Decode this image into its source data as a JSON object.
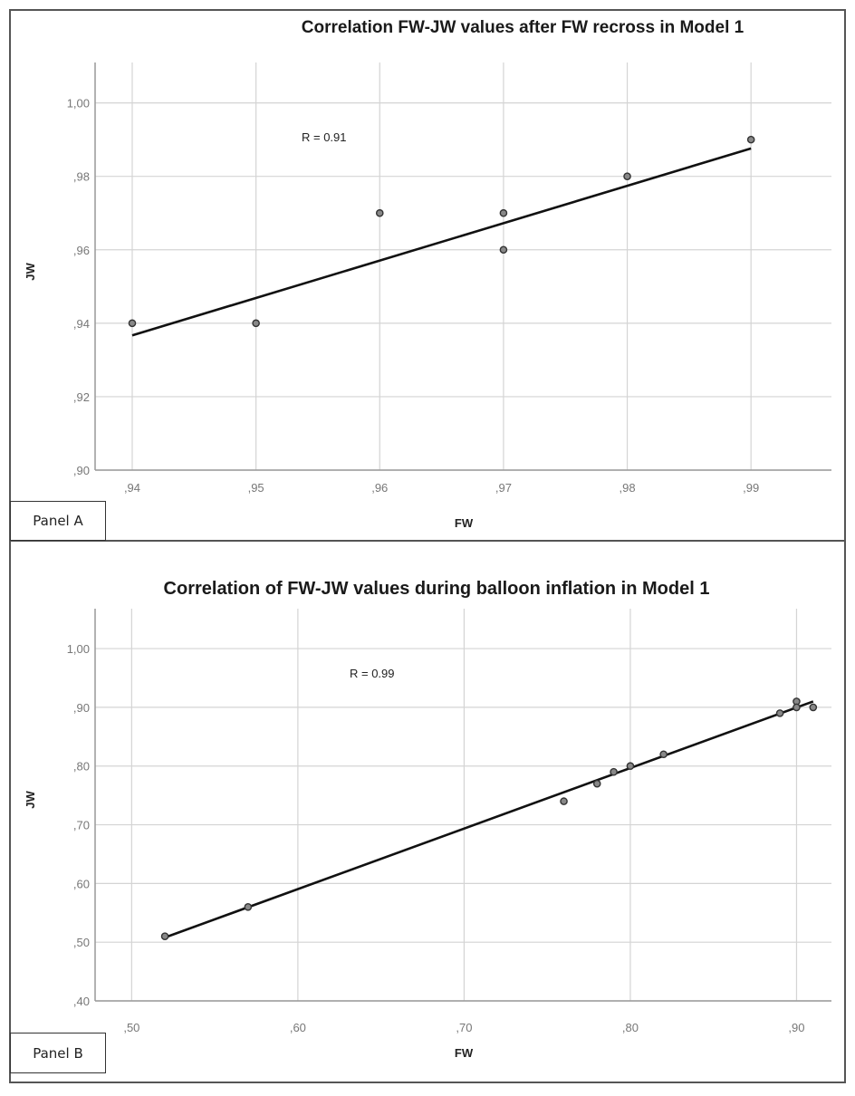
{
  "panels": [
    {
      "label": "Panel A"
    },
    {
      "label": "Panel B"
    }
  ],
  "chart_data": [
    {
      "type": "scatter",
      "title": "Correlation FW-JW values after FW recross in Model 1",
      "xlabel": "FW",
      "ylabel": "JW",
      "annotation": "R = 0.91",
      "xlim": [
        0.937,
        0.9965
      ],
      "ylim": [
        0.9,
        1.011
      ],
      "xticks": [
        0.94,
        0.95,
        0.96,
        0.97,
        0.98,
        0.99
      ],
      "xtick_labels": [
        ",94",
        ",95",
        ",96",
        ",97",
        ",98",
        ",99"
      ],
      "yticks": [
        0.9,
        0.92,
        0.94,
        0.96,
        0.98,
        1.0
      ],
      "ytick_labels": [
        ",90",
        ",92",
        ",94",
        ",96",
        ",98",
        "1,00"
      ],
      "grid": true,
      "points": [
        {
          "x": 0.94,
          "y": 0.94
        },
        {
          "x": 0.95,
          "y": 0.94
        },
        {
          "x": 0.96,
          "y": 0.97
        },
        {
          "x": 0.97,
          "y": 0.97
        },
        {
          "x": 0.97,
          "y": 0.96
        },
        {
          "x": 0.98,
          "y": 0.98
        },
        {
          "x": 0.99,
          "y": 0.99
        }
      ],
      "fit_line": {
        "x": [
          0.94,
          0.99
        ],
        "y": [
          0.9367,
          0.9876
        ]
      }
    },
    {
      "type": "scatter",
      "title": "Correlation of FW-JW values during balloon inflation in Model 1",
      "xlabel": "FW",
      "ylabel": "JW",
      "annotation": "R = 0.99",
      "xlim": [
        0.478,
        0.921
      ],
      "ylim": [
        0.4,
        1.068
      ],
      "xticks": [
        0.5,
        0.6,
        0.7,
        0.8,
        0.9
      ],
      "xtick_labels": [
        ",50",
        ",60",
        ",70",
        ",80",
        ",90"
      ],
      "yticks": [
        0.4,
        0.5,
        0.6,
        0.7,
        0.8,
        0.9,
        1.0
      ],
      "ytick_labels": [
        ",40",
        ",50",
        ",60",
        ",70",
        ",80",
        ",90",
        "1,00"
      ],
      "grid": true,
      "points": [
        {
          "x": 0.52,
          "y": 0.51
        },
        {
          "x": 0.57,
          "y": 0.56
        },
        {
          "x": 0.76,
          "y": 0.74
        },
        {
          "x": 0.78,
          "y": 0.77
        },
        {
          "x": 0.79,
          "y": 0.79
        },
        {
          "x": 0.8,
          "y": 0.8
        },
        {
          "x": 0.82,
          "y": 0.82
        },
        {
          "x": 0.89,
          "y": 0.89
        },
        {
          "x": 0.9,
          "y": 0.91
        },
        {
          "x": 0.9,
          "y": 0.9
        },
        {
          "x": 0.91,
          "y": 0.9
        }
      ],
      "fit_line": {
        "x": [
          0.52,
          0.91
        ],
        "y": [
          0.508,
          0.91
        ]
      }
    }
  ]
}
